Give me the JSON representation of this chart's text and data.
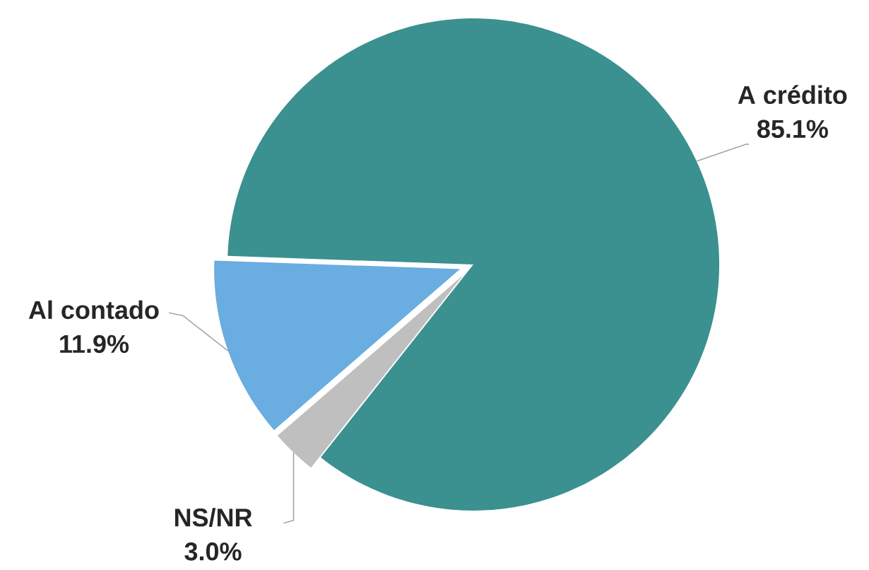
{
  "chart_data": {
    "type": "pie",
    "categories": [
      "Al contado",
      "NS/NR",
      "A crédito"
    ],
    "values": [
      11.9,
      3.0,
      85.1
    ],
    "value_labels": [
      "11.9%",
      "3.0%",
      "85.1%"
    ],
    "colors": [
      "#6aade0",
      "#bfbfbf",
      "#3b9090"
    ]
  }
}
